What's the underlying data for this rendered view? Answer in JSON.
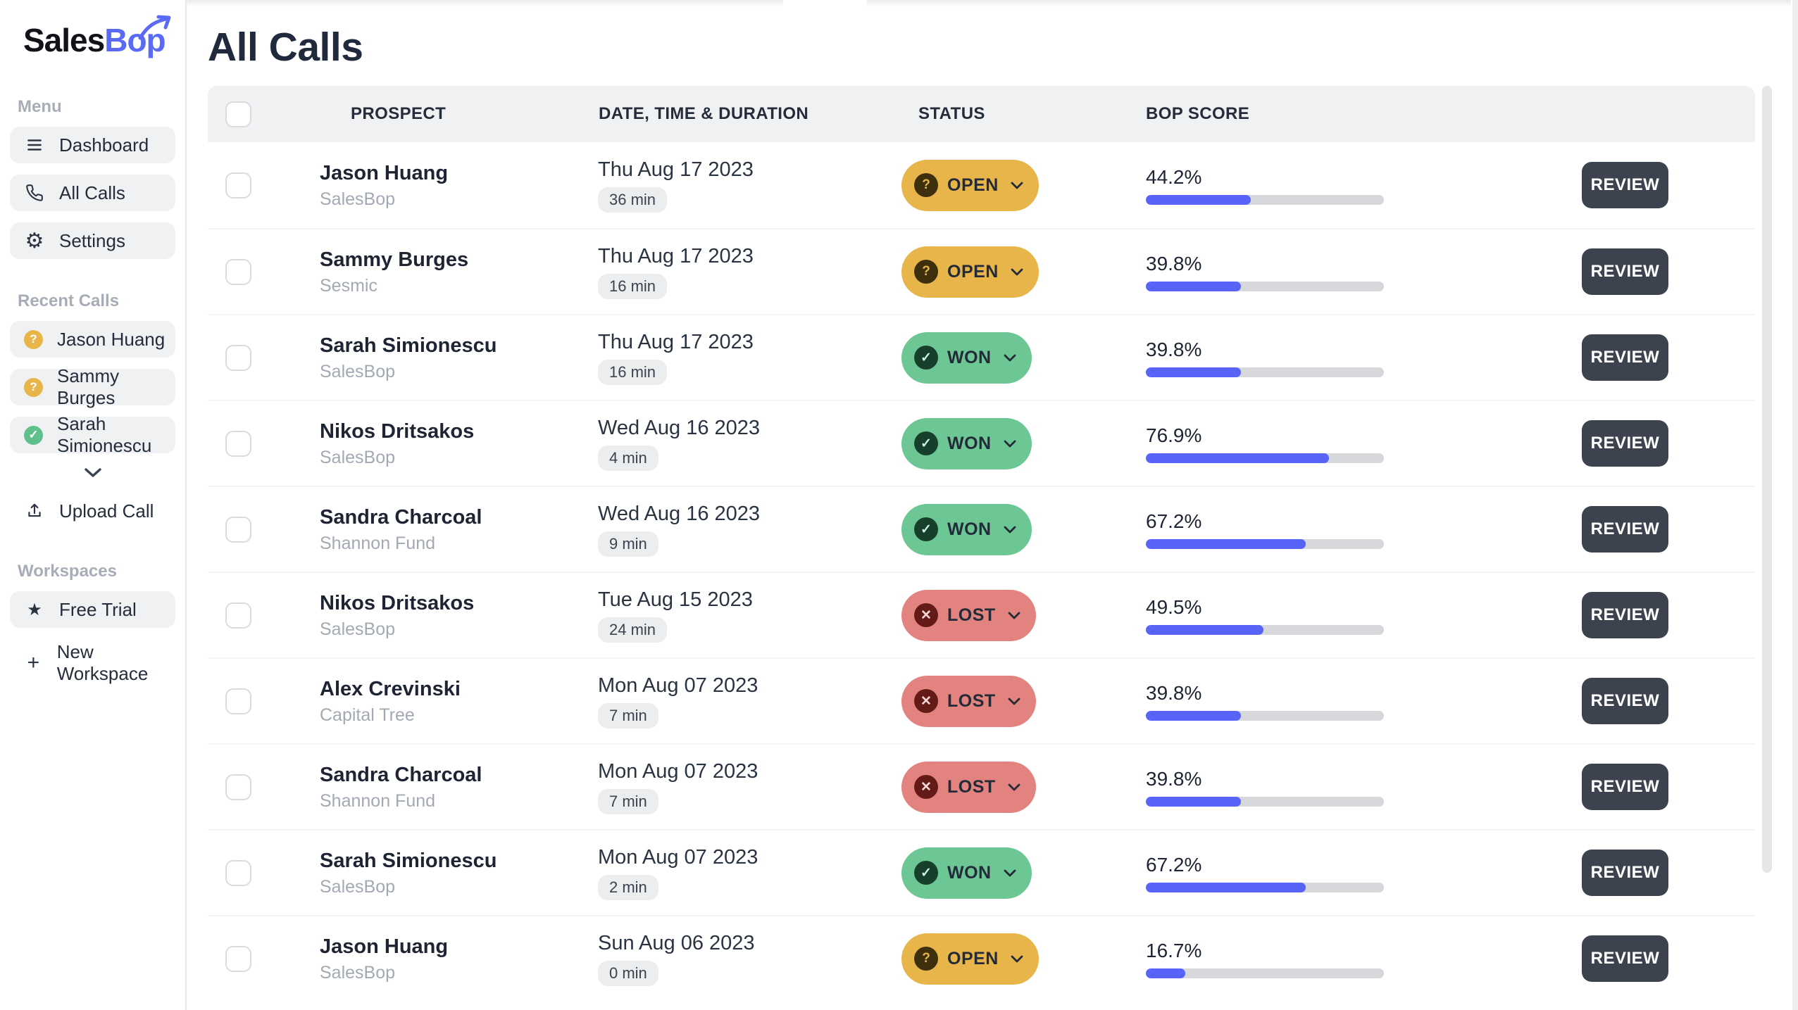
{
  "brand": {
    "name_primary": "Sales",
    "name_accent": "Bop"
  },
  "sidebar": {
    "menu_label": "Menu",
    "menu_items": [
      {
        "label": "Dashboard",
        "icon": "hamburger-icon"
      },
      {
        "label": "All Calls",
        "icon": "phone-icon"
      },
      {
        "label": "Settings",
        "icon": "gear-icon"
      }
    ],
    "recent_label": "Recent Calls",
    "recent_calls": [
      {
        "name": "Jason Huang",
        "status": "open"
      },
      {
        "name": "Sammy Burges",
        "status": "open"
      },
      {
        "name": "Sarah Simionescu",
        "status": "won"
      }
    ],
    "upload_label": "Upload Call",
    "workspaces_label": "Workspaces",
    "workspace_items": [
      {
        "label": "Free Trial",
        "icon": "star-icon"
      }
    ],
    "new_workspace_label": "New Workspace"
  },
  "main": {
    "title": "All Calls",
    "table": {
      "headers": {
        "prospect": "PROSPECT",
        "date": "DATE, TIME & DURATION",
        "status": "STATUS",
        "score": "BOP SCORE"
      },
      "review_label": "REVIEW",
      "statuses": {
        "open": {
          "label": "OPEN",
          "glyph": "?"
        },
        "won": {
          "label": "WON",
          "glyph": "✓"
        },
        "lost": {
          "label": "LOST",
          "glyph": "✕"
        }
      },
      "rows": [
        {
          "name": "Jason Huang",
          "company": "SalesBop",
          "date": "Thu Aug 17 2023",
          "duration": "36 min",
          "status": "open",
          "score": 44.2,
          "score_label": "44.2%"
        },
        {
          "name": "Sammy Burges",
          "company": "Sesmic",
          "date": "Thu Aug 17 2023",
          "duration": "16 min",
          "status": "open",
          "score": 39.8,
          "score_label": "39.8%"
        },
        {
          "name": "Sarah Simionescu",
          "company": "SalesBop",
          "date": "Thu Aug 17 2023",
          "duration": "16 min",
          "status": "won",
          "score": 39.8,
          "score_label": "39.8%"
        },
        {
          "name": "Nikos Dritsakos",
          "company": "SalesBop",
          "date": "Wed Aug 16 2023",
          "duration": "4 min",
          "status": "won",
          "score": 76.9,
          "score_label": "76.9%"
        },
        {
          "name": "Sandra Charcoal",
          "company": "Shannon Fund",
          "date": "Wed Aug 16 2023",
          "duration": "9 min",
          "status": "won",
          "score": 67.2,
          "score_label": "67.2%"
        },
        {
          "name": "Nikos Dritsakos",
          "company": "SalesBop",
          "date": "Tue Aug 15 2023",
          "duration": "24 min",
          "status": "lost",
          "score": 49.5,
          "score_label": "49.5%"
        },
        {
          "name": "Alex Crevinski",
          "company": "Capital Tree",
          "date": "Mon Aug 07 2023",
          "duration": "7 min",
          "status": "lost",
          "score": 39.8,
          "score_label": "39.8%"
        },
        {
          "name": "Sandra Charcoal",
          "company": "Shannon Fund",
          "date": "Mon Aug 07 2023",
          "duration": "7 min",
          "status": "lost",
          "score": 39.8,
          "score_label": "39.8%"
        },
        {
          "name": "Sarah Simionescu",
          "company": "SalesBop",
          "date": "Mon Aug 07 2023",
          "duration": "2 min",
          "status": "won",
          "score": 67.2,
          "score_label": "67.2%"
        },
        {
          "name": "Jason Huang",
          "company": "SalesBop",
          "date": "Sun Aug 06 2023",
          "duration": "0 min",
          "status": "open",
          "score": 16.7,
          "score_label": "16.7%"
        }
      ]
    }
  },
  "colors": {
    "accent_blue": "#5863F8",
    "logo_accent": "#5B6AF5",
    "status_open": "#E8B54B",
    "status_won": "#6CC795",
    "status_lost": "#E2837F",
    "dark_button": "#3C434F",
    "bar_track": "#D6D8DB"
  }
}
